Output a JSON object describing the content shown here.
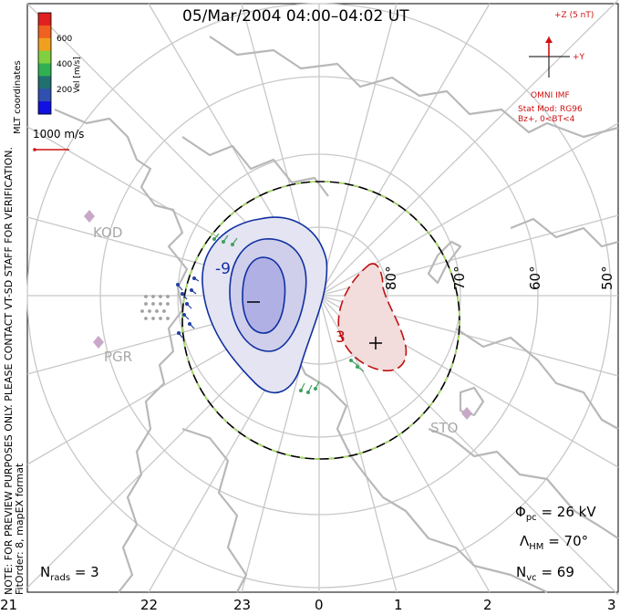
{
  "title": "05/Mar/2004 04:00–04:02 UT",
  "coord_label": "MLT coordinates",
  "colorbar": {
    "label": "Vel [m/s]",
    "ticks": [
      "600",
      "400",
      "200"
    ],
    "colors": [
      "#e02020",
      "#f06020",
      "#f0a020",
      "#80d040",
      "#30b050",
      "#207070",
      "#3050b0",
      "#1010e0"
    ]
  },
  "vector_scale": {
    "label": "1000 m/s"
  },
  "notes": {
    "line1": "NOTE: FOR PREVIEW PURPOSES ONLY. PLEASE CONTACT VT-SD STAFF FOR VERIFICATION.",
    "line2": "FitOrder: 8, mapEX format"
  },
  "imf": {
    "z_label": "+Z (5 nT)",
    "y_label": "+Y",
    "source": "OMNI IMF",
    "model": "Stat Mod: RG96",
    "condition": "Bz+, 0<BT<4"
  },
  "contours": {
    "neg_label": "-9",
    "pos_label": "3"
  },
  "stations": [
    "KOD",
    "PGR",
    "STO"
  ],
  "latitudes": [
    "80°",
    "70°",
    "60°",
    "50°"
  ],
  "stats": {
    "phi_pc": {
      "symbol": "Φ",
      "sub": "pc",
      "value": "= 26 kV"
    },
    "lambda_hm": {
      "symbol": "Λ",
      "sub": "HM",
      "value": "= 70°"
    },
    "n_vc": {
      "symbol": "N",
      "sub": "vc",
      "value": "= 69"
    },
    "n_rads": {
      "symbol": "N",
      "sub": "rads",
      "value": "= 3"
    }
  },
  "mlt_ticks": [
    "21",
    "22",
    "23",
    "0",
    "1",
    "2",
    "3"
  ],
  "colors": {
    "boundary": "#a8e060",
    "neg": "#1030a0",
    "pos": "#c01010",
    "land": "#b8b8b8",
    "grid": "#c8c8c8"
  }
}
